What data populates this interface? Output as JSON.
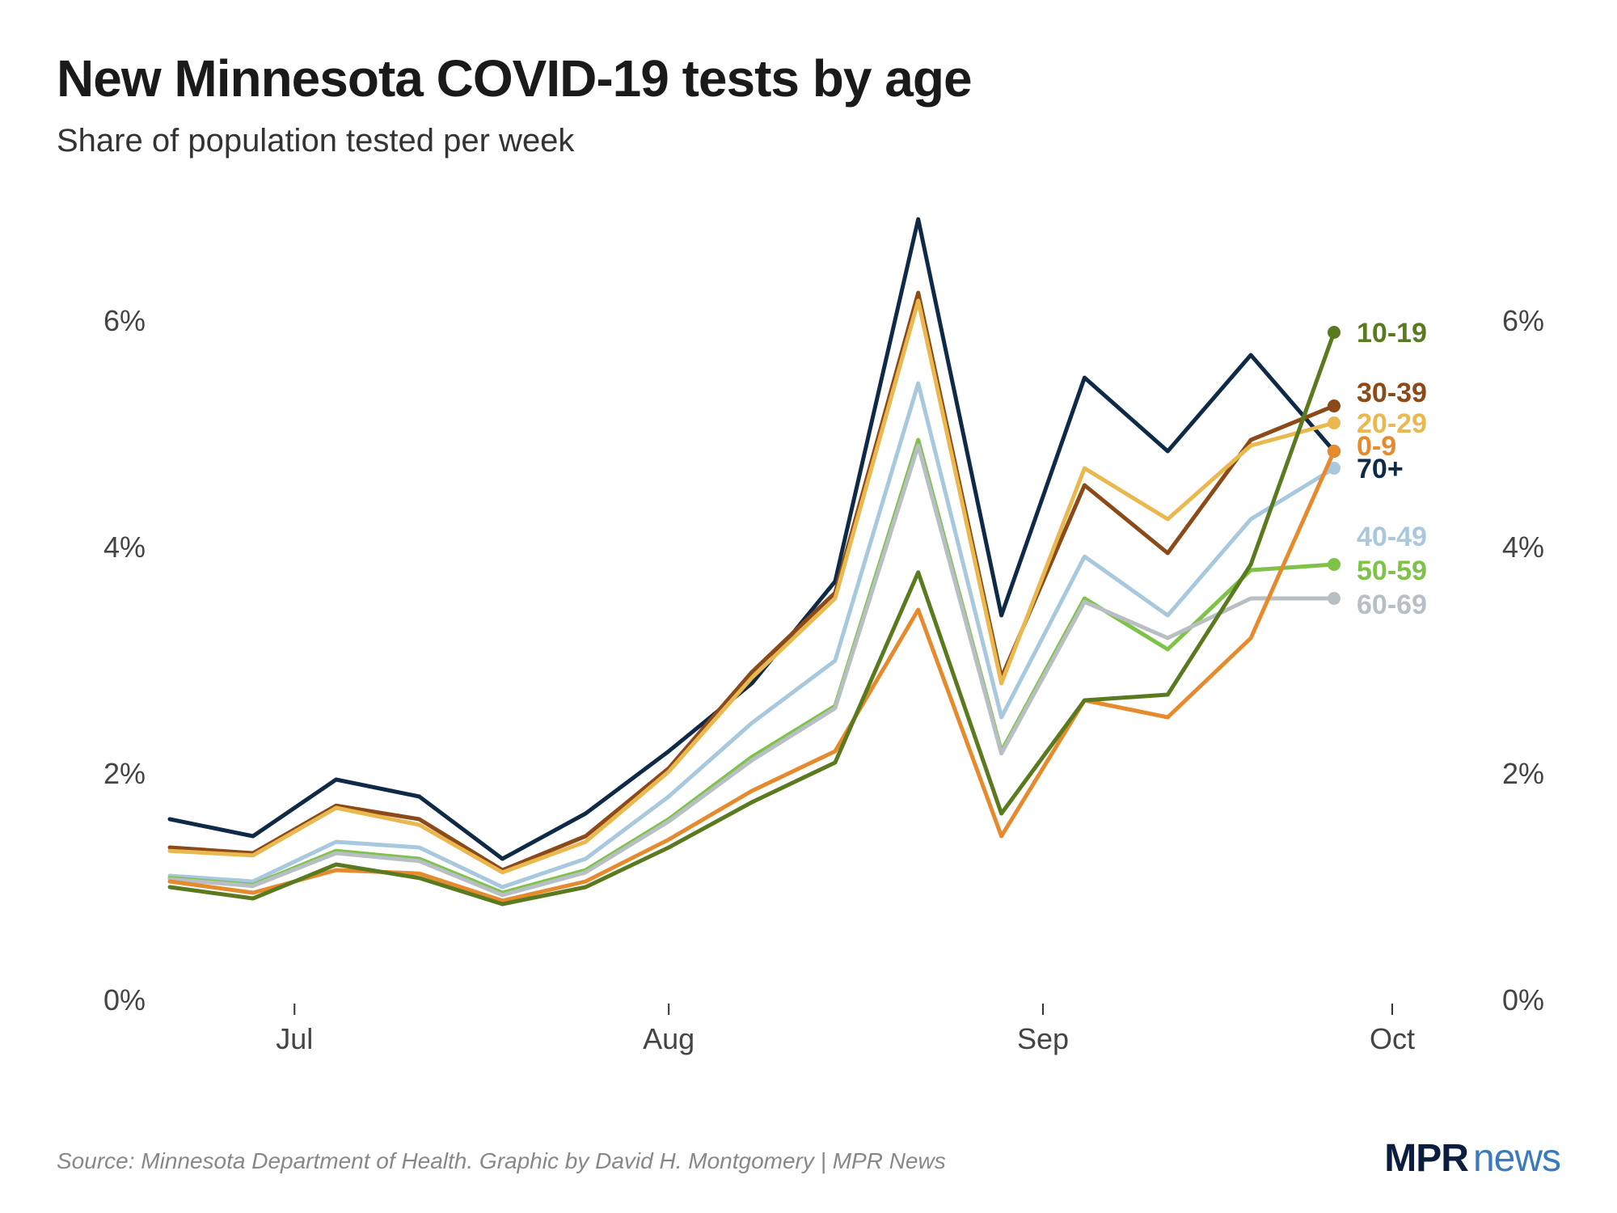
{
  "title": "New Minnesota COVID-19 tests by age",
  "subtitle": "Share of population tested per week",
  "source": "Source: Minnesota Department of Health. Graphic by David H. Montgomery | MPR News",
  "logo": {
    "mpr": "MPR",
    "news": "news"
  },
  "chart": {
    "type": "line",
    "background": "#ffffff",
    "ylim": [
      0,
      7
    ],
    "y_ticks": [
      0,
      2,
      4,
      6
    ],
    "y_tick_labels": [
      "0%",
      "2%",
      "4%",
      "6%"
    ],
    "x_months": [
      "Jul",
      "Aug",
      "Sep",
      "Oct"
    ],
    "x_month_positions": [
      1.5,
      6,
      10.5,
      14.7
    ],
    "n_points": 15,
    "line_width": 5,
    "dot_radius": 8,
    "label_fontsize": 34,
    "axis_fontsize": 36,
    "series": [
      {
        "name": "70+",
        "label": "70+",
        "color": "#0e2a47",
        "label_y": 4.7,
        "values": [
          1.6,
          1.45,
          1.95,
          1.8,
          1.25,
          1.65,
          2.2,
          2.8,
          3.7,
          6.9,
          3.4,
          5.5,
          4.85,
          5.7,
          4.85
        ]
      },
      {
        "name": "30-39",
        "label": "30-39",
        "color": "#8b4a17",
        "label_y": 5.37,
        "values": [
          1.35,
          1.3,
          1.72,
          1.6,
          1.15,
          1.45,
          2.05,
          2.9,
          3.6,
          6.25,
          2.85,
          4.55,
          3.95,
          4.95,
          5.25
        ]
      },
      {
        "name": "20-29",
        "label": "20-29",
        "color": "#e9b84e",
        "label_y": 5.1,
        "values": [
          1.32,
          1.28,
          1.7,
          1.55,
          1.13,
          1.4,
          2.02,
          2.85,
          3.55,
          6.18,
          2.8,
          4.7,
          4.25,
          4.9,
          5.1
        ]
      },
      {
        "name": "40-49",
        "label": "40-49",
        "color": "#a8c8de",
        "label_y": 4.1,
        "values": [
          1.1,
          1.05,
          1.4,
          1.35,
          1.0,
          1.25,
          1.8,
          2.45,
          3.0,
          5.45,
          2.5,
          3.92,
          3.4,
          4.25,
          4.7
        ]
      },
      {
        "name": "50-59",
        "label": "50-59",
        "color": "#7fc24a",
        "label_y": 3.8,
        "values": [
          1.08,
          1.02,
          1.32,
          1.25,
          0.95,
          1.15,
          1.6,
          2.15,
          2.6,
          4.95,
          2.2,
          3.55,
          3.1,
          3.8,
          3.85
        ]
      },
      {
        "name": "60-69",
        "label": "60-69",
        "color": "#b7bfc4",
        "label_y": 3.5,
        "values": [
          1.07,
          1.01,
          1.3,
          1.23,
          0.93,
          1.13,
          1.58,
          2.12,
          2.58,
          4.9,
          2.18,
          3.52,
          3.2,
          3.55,
          3.55
        ]
      },
      {
        "name": "0-9",
        "label": "0-9",
        "color": "#e68a2e",
        "label_y": 4.9,
        "values": [
          1.05,
          0.95,
          1.15,
          1.12,
          0.88,
          1.05,
          1.42,
          1.85,
          2.2,
          3.45,
          1.45,
          2.65,
          2.5,
          3.2,
          4.85
        ]
      },
      {
        "name": "10-19",
        "label": "10-19",
        "color": "#5a7a1f",
        "label_y": 5.9,
        "values": [
          1.0,
          0.9,
          1.2,
          1.08,
          0.85,
          1.0,
          1.35,
          1.75,
          2.1,
          3.78,
          1.65,
          2.65,
          2.7,
          3.85,
          5.9
        ]
      }
    ],
    "label_order": [
      "10-19",
      "30-39",
      "20-29",
      "0-9",
      "70+",
      "40-49",
      "50-59",
      "60-69"
    ]
  }
}
